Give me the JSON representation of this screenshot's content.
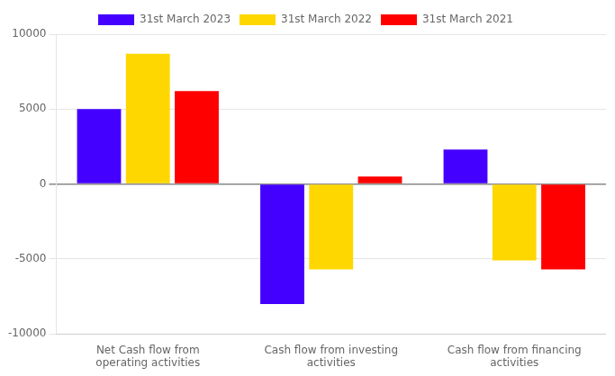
{
  "chart_data": {
    "type": "bar",
    "categories": [
      "Net Cash flow from\noperating activities",
      "Cash flow from investing\nactivities",
      "Cash flow from financing\nactivities"
    ],
    "series": [
      {
        "name": "31st March 2023",
        "color": "#4400FF",
        "values": [
          5000,
          -8000,
          2300
        ]
      },
      {
        "name": "31st March 2022",
        "color": "#FFD700",
        "values": [
          8700,
          -5700,
          -5100
        ]
      },
      {
        "name": "31st March 2021",
        "color": "#FF0000",
        "values": [
          6200,
          500,
          -5700
        ]
      }
    ],
    "ylim": [
      -10000,
      10000
    ],
    "yticks": [
      -10000,
      -5000,
      0,
      5000,
      10000
    ],
    "grid": true,
    "legend": "top"
  }
}
